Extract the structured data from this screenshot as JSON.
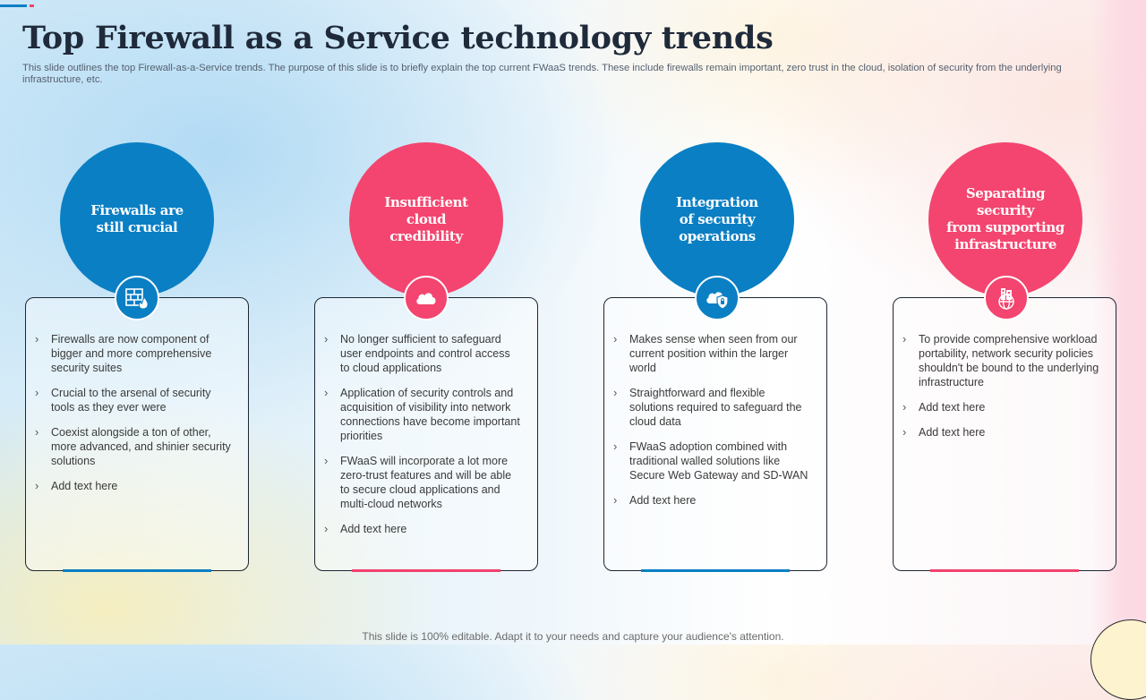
{
  "title": "Top Firewall as a Service technology trends",
  "subtitle": "This slide outlines the top Firewall-as-a-Service trends. The purpose of this slide is to briefly explain the top current FWaaS trends. These include firewalls remain important, zero trust in the cloud, isolation of security from the underlying infrastructure, etc.",
  "footer": "This slide is 100% editable. Adapt it to your needs and capture your audience's attention.",
  "colors": {
    "blue": "#0a7fc4",
    "pink": "#f3456f"
  },
  "bullet_glyph": "›",
  "cards": [
    {
      "heading": "Firewalls are\nstill crucial",
      "icon": "firewall-icon",
      "color": "blue",
      "bullets": [
        "Firewalls are now component of bigger and more comprehensive security suites",
        "Crucial to the arsenal of security tools as they ever were",
        "Coexist alongside a ton of other, more advanced,  and shinier security solutions",
        "Add text here"
      ]
    },
    {
      "heading": "Insufficient\ncloud\ncredibility",
      "icon": "cloud-icon",
      "color": "pink",
      "bullets": [
        "No longer sufficient to safeguard user endpoints and control access to cloud applications",
        "Application of security controls and acquisition of visibility into network connections have become important priorities",
        "FWaaS will incorporate  a lot more zero-trust features and will be able to secure cloud applications and multi-cloud networks",
        "Add text here"
      ]
    },
    {
      "heading": "Integration\nof security\noperations",
      "icon": "cloud-shield-icon",
      "color": "blue",
      "bullets": [
        "Makes sense when seen from our current position within the larger world",
        "Straightforward  and flexible solutions required to safeguard the cloud data",
        "FWaaS adoption combined with traditional walled solutions like Secure Web Gateway and SD-WAN",
        "Add text here"
      ]
    },
    {
      "heading": "Separating security\nfrom supporting\ninfrastructure",
      "icon": "building-globe-icon",
      "color": "pink",
      "bullets": [
        "To provide comprehensive workload portability, network security policies shouldn't be bound to the underlying infrastructure",
        "Add text here",
        "Add text here"
      ]
    }
  ]
}
